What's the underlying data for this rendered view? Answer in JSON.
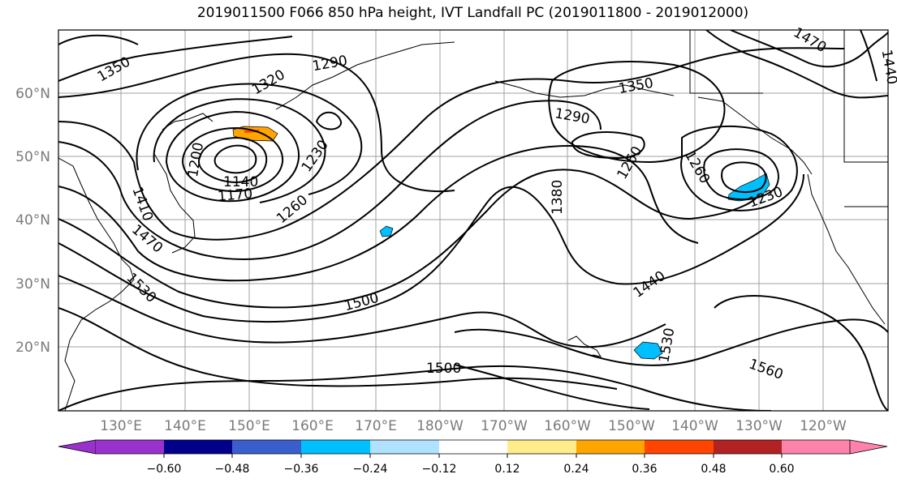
{
  "title": "2019011500 F066 850 hPa height, IVT Landfall PC (2019011800 - 2019012000)",
  "lat_labels": [
    "60°N",
    "50°N",
    "40°N",
    "30°N",
    "20°N"
  ],
  "lon_labels": [
    "130°E",
    "140°E",
    "150°E",
    "160°E",
    "170°E",
    "180°W",
    "170°W",
    "160°W",
    "150°W",
    "140°W",
    "130°W",
    "120°W"
  ],
  "contour_labels": [
    "1350",
    "1320",
    "1290",
    "1290",
    "1350",
    "1470",
    "1440",
    "1230",
    "1200",
    "1140",
    "1170",
    "1260",
    "1260",
    "1260",
    "1410",
    "1470",
    "1530",
    "1380",
    "1500",
    "1440",
    "1230",
    "1530",
    "1500",
    "1560"
  ],
  "colorbar": {
    "ticks": [
      "−0.60",
      "−0.48",
      "−0.36",
      "−0.24",
      "−0.12",
      "0.12",
      "0.24",
      "0.36",
      "0.48",
      "0.60"
    ],
    "colors": [
      "#9932cc",
      "#00008b",
      "#3a5fcd",
      "#00bfff",
      "#b0e2ff",
      "#ffffff",
      "#ffec8b",
      "#ffa500",
      "#ff4500",
      "#b22222",
      "#ff82ab"
    ]
  },
  "shading": {
    "orange": "#ffa500",
    "blue": "#00bfff",
    "red": "#ff4500"
  }
}
